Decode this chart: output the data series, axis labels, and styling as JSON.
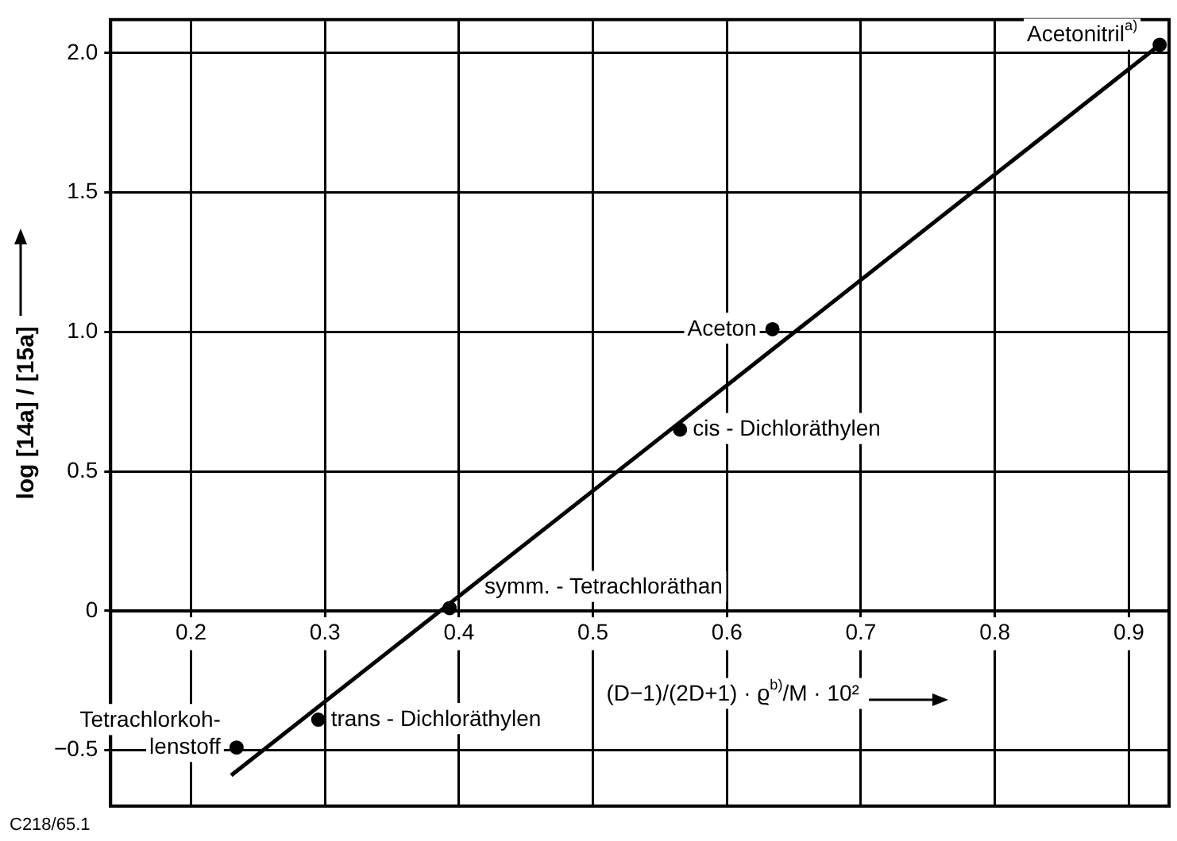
{
  "chart_data": {
    "type": "scatter",
    "xlabel": "(D−1)/(2D+1) · ϱ$^{b)}$/M · 10²",
    "ylabel": "log [14a] / [15a]",
    "series": [
      {
        "type": "scatter",
        "color": "#000000",
        "marker": "circle",
        "x": [
          0.234,
          0.295,
          0.393,
          0.565,
          0.634,
          0.923
        ],
        "values": [
          -0.49,
          -0.39,
          0.01,
          0.65,
          1.01,
          2.03
        ]
      },
      {
        "type": "line",
        "color": "#000000",
        "marker": "none",
        "line_style": "solid",
        "x": [
          0.23,
          0.923
        ],
        "values": [
          -0.59,
          2.03
        ]
      }
    ],
    "annotations": [
      {
        "text": "Tetrachlorkoh-\nlenstoff",
        "x": 0.234,
        "y": -0.49
      },
      {
        "text": "trans - Dichloräthylen",
        "x": 0.295,
        "y": -0.39
      },
      {
        "text": "symm. - Tetrachloräthan",
        "x": 0.393,
        "y": 0.01
      },
      {
        "text": "cis - Dichloräthylen",
        "x": 0.565,
        "y": 0.65
      },
      {
        "text": "Aceton",
        "x": 0.634,
        "y": 1.01
      },
      {
        "text": "Acetonitril$^{a)}$",
        "x": 0.923,
        "y": 2.03
      },
      "C218/65.1"
    ],
    "xlim": [
      0.14,
      0.93
    ],
    "ylim": [
      -0.7,
      2.12
    ],
    "xticks": [
      0.2,
      0.3,
      0.4,
      0.5,
      0.6,
      0.7,
      0.8,
      0.9
    ],
    "yticks": [
      {
        "value": -0.5,
        "label": "−0.5"
      },
      0,
      {
        "value": 0.5,
        "label": "0.5"
      },
      {
        "value": 1,
        "label": "1.0"
      },
      {
        "value": 1.5,
        "label": "1.5"
      },
      {
        "value": 2,
        "label": "2.0"
      }
    ],
    "grid": true,
    "legend": false
  }
}
